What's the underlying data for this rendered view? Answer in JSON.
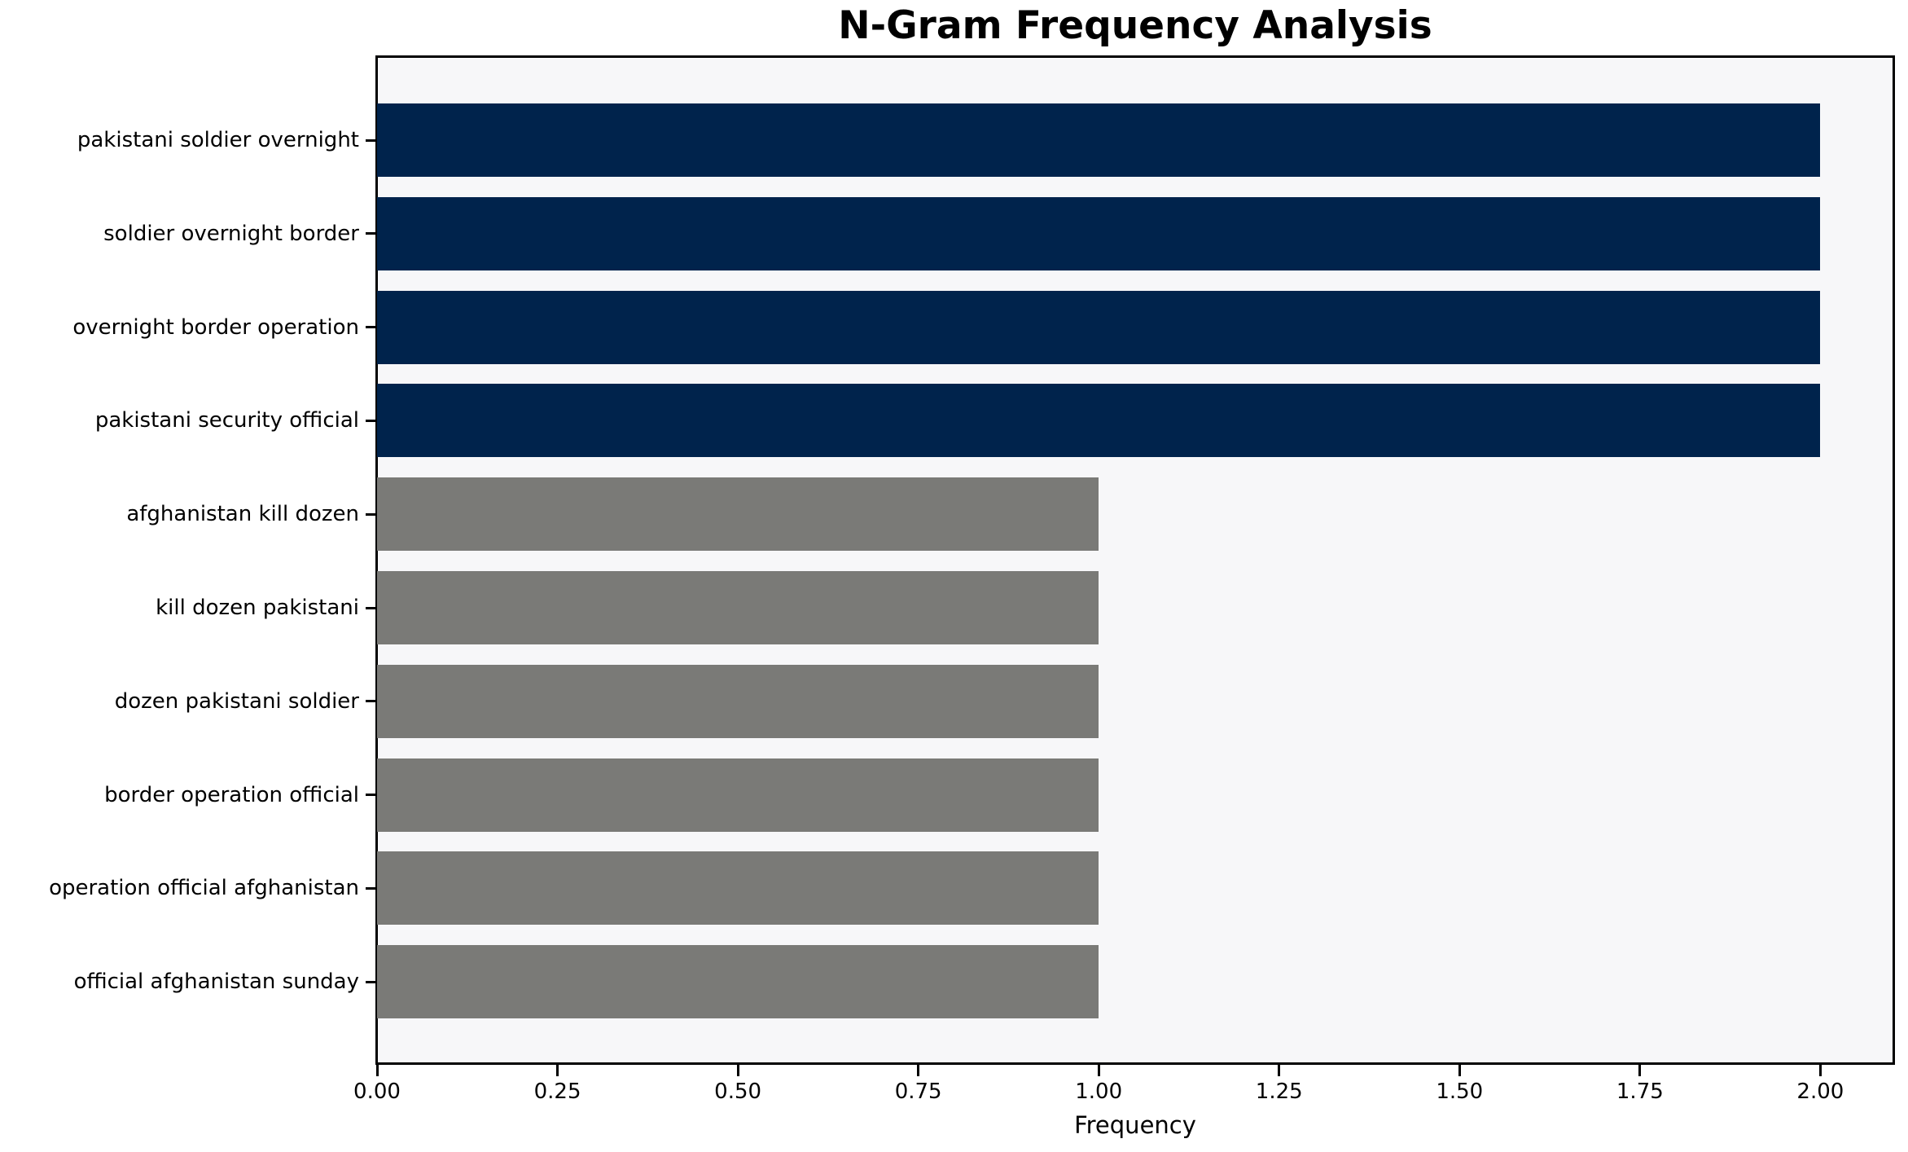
{
  "chart_data": {
    "type": "bar",
    "orientation": "horizontal",
    "title": "N-Gram Frequency Analysis",
    "xlabel": "Frequency",
    "ylabel": "",
    "categories": [
      "pakistani soldier overnight",
      "soldier overnight border",
      "overnight border operation",
      "pakistani security official",
      "afghanistan kill dozen",
      "kill dozen pakistani",
      "dozen pakistani soldier",
      "border operation official",
      "operation official afghanistan",
      "official afghanistan sunday"
    ],
    "values": [
      2,
      2,
      2,
      2,
      1,
      1,
      1,
      1,
      1,
      1
    ],
    "bar_colors": [
      "#00234C",
      "#00234C",
      "#00234C",
      "#00234C",
      "#7A7A77",
      "#7A7A77",
      "#7A7A77",
      "#7A7A77",
      "#7A7A77",
      "#7A7A77"
    ],
    "xlim": [
      0,
      2.1
    ],
    "x_tick_values": [
      0,
      0.25,
      0.5,
      0.75,
      1.0,
      1.25,
      1.5,
      1.75,
      2.0
    ],
    "x_tick_labels": [
      "0.00",
      "0.25",
      "0.50",
      "0.75",
      "1.00",
      "1.25",
      "1.50",
      "1.75",
      "2.00"
    ],
    "grid": false,
    "legend": null,
    "colors": {
      "highlight_bar": "#00234C",
      "base_bar": "#7A7A77",
      "plot_background": "#F7F7F9",
      "figure_background": "#FFFFFF",
      "spine": "#000000",
      "text": "#000000"
    }
  }
}
